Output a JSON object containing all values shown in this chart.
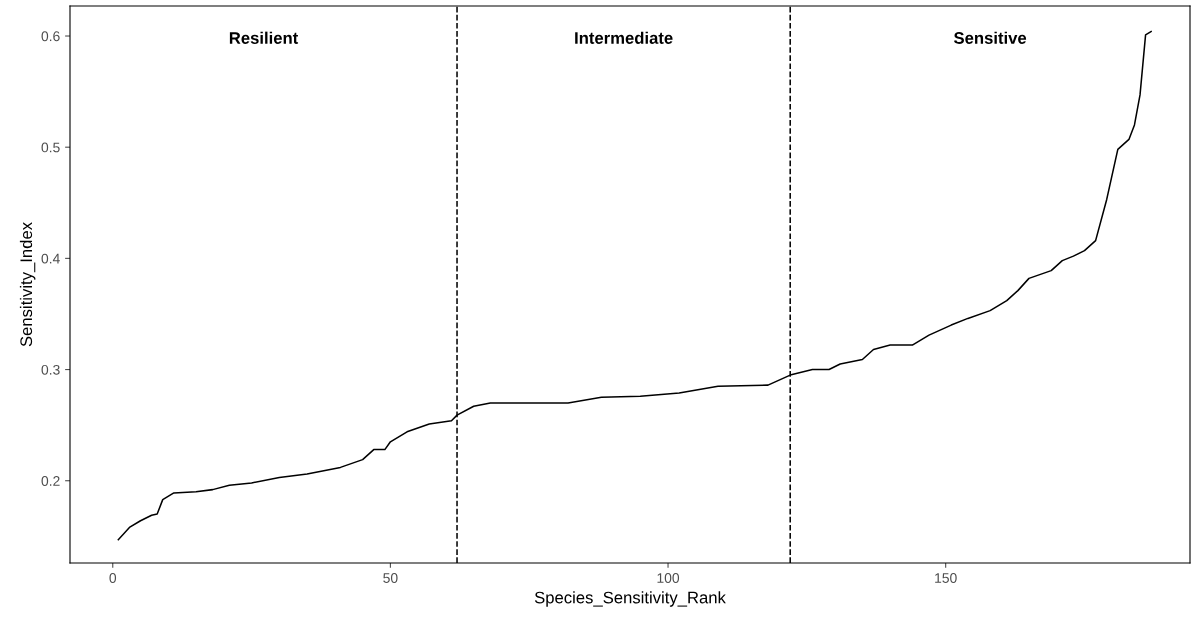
{
  "chart_data": {
    "type": "line",
    "xlabel": "Species_Sensitivity_Rank",
    "ylabel": "Sensitivity_Index",
    "xlim": [
      -7.7,
      194
    ],
    "ylim": [
      0.126,
      0.627
    ],
    "xticks": [
      0,
      50,
      100,
      150
    ],
    "yticks": [
      0.2,
      0.3,
      0.4,
      0.5,
      0.6
    ],
    "grid": false,
    "legend": false,
    "series": [
      {
        "color": "#000000",
        "x": [
          1,
          3,
          5,
          7,
          8,
          9,
          11,
          15,
          18,
          21,
          25,
          30,
          35,
          41,
          45,
          47,
          49,
          50,
          53,
          57,
          61,
          62,
          65,
          68,
          82,
          88,
          95,
          102,
          109,
          118,
          122,
          126,
          129,
          131,
          135,
          137,
          140,
          144,
          147,
          151,
          154,
          158,
          161,
          163,
          165,
          169,
          171,
          173,
          175,
          177,
          179,
          181,
          183,
          184,
          185,
          186,
          187
        ],
        "values": [
          0.147,
          0.158,
          0.164,
          0.169,
          0.17,
          0.183,
          0.189,
          0.19,
          0.192,
          0.196,
          0.198,
          0.203,
          0.206,
          0.212,
          0.219,
          0.228,
          0.228,
          0.235,
          0.244,
          0.251,
          0.254,
          0.259,
          0.267,
          0.27,
          0.27,
          0.275,
          0.276,
          0.279,
          0.285,
          0.286,
          0.295,
          0.3,
          0.3,
          0.305,
          0.309,
          0.318,
          0.322,
          0.322,
          0.331,
          0.34,
          0.346,
          0.353,
          0.362,
          0.371,
          0.382,
          0.389,
          0.398,
          0.402,
          0.407,
          0.416,
          0.453,
          0.498,
          0.507,
          0.52,
          0.547,
          0.601,
          0.604
        ]
      }
    ],
    "ref_lines": [
      {
        "axis": "x",
        "value": 62,
        "color": "#000000",
        "line_style": "dashed"
      },
      {
        "axis": "x",
        "value": 122,
        "color": "#000000",
        "line_style": "dashed"
      }
    ],
    "annotations": [
      "Resilient",
      "Intermediate",
      "Sensitive"
    ]
  }
}
